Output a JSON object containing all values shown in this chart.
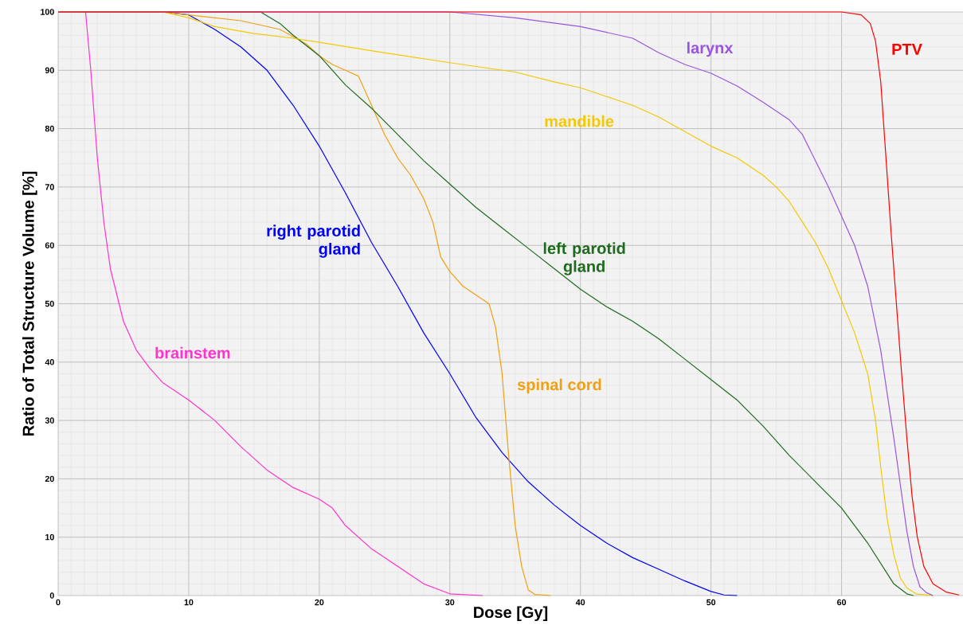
{
  "chart_data": {
    "type": "line",
    "xlabel": "Dose [Gy]",
    "ylabel": "Ratio of Total Structure Volume [%]",
    "xlim": [
      0,
      69.3
    ],
    "ylim": [
      0,
      100
    ],
    "xticks": [
      0,
      10,
      20,
      30,
      40,
      50,
      60
    ],
    "yticks": [
      0,
      10,
      20,
      30,
      40,
      50,
      60,
      70,
      80,
      90,
      100
    ],
    "grid": true,
    "series": [
      {
        "name": "brainstem",
        "color": "#ff33cc",
        "x": [
          2.1,
          2.5,
          3,
          3.5,
          4,
          5,
          6,
          7,
          8,
          10,
          12,
          14,
          16,
          18,
          20,
          21,
          22,
          24,
          26,
          28,
          30,
          32.5
        ],
        "values": [
          100,
          90,
          75,
          64,
          56,
          47,
          42,
          39,
          36.5,
          33.5,
          30,
          25.5,
          21.5,
          18.5,
          16.5,
          15,
          12,
          8,
          5,
          2,
          0.3,
          0
        ]
      },
      {
        "name": "right parotid gland",
        "color": "#0000ff",
        "x": [
          0,
          8,
          10,
          12,
          14,
          16,
          18,
          20,
          22,
          24,
          26,
          28,
          30,
          32,
          34,
          36,
          38,
          40,
          42,
          44,
          46,
          48,
          50,
          51,
          52
        ],
        "values": [
          100,
          100,
          99.5,
          97,
          94,
          90,
          84,
          77,
          69,
          60.5,
          53,
          45,
          38,
          30.5,
          24.5,
          19.5,
          15.5,
          12,
          9,
          6.5,
          4.5,
          2.5,
          0.7,
          0.1,
          0
        ]
      },
      {
        "name": "spinal cord",
        "color": "#f0a010",
        "x": [
          0,
          8,
          10,
          14,
          17,
          19,
          20,
          21,
          22,
          23,
          24,
          25,
          26,
          27,
          28,
          28.7,
          29.3,
          30,
          31,
          32,
          33,
          33.5,
          34,
          34.5,
          35,
          35.5,
          36,
          36.5,
          37.7
        ],
        "values": [
          100,
          100,
          99.5,
          98.5,
          97,
          94.5,
          92.5,
          91,
          90,
          89,
          84,
          79,
          75,
          72,
          68,
          64,
          58,
          55.5,
          53,
          51.5,
          50,
          46,
          38,
          24,
          12,
          5,
          1,
          0.2,
          0
        ]
      },
      {
        "name": "left parotid gland",
        "color": "#1e6b1e",
        "x": [
          0,
          15.5,
          17,
          18,
          20,
          22,
          24,
          26,
          28,
          30,
          32,
          34,
          36,
          38,
          40,
          42,
          44,
          46,
          48,
          50,
          52,
          54,
          56,
          58,
          60,
          62,
          63,
          64,
          65,
          65.5
        ],
        "values": [
          100,
          100,
          98,
          96,
          92.5,
          87.5,
          83.5,
          79,
          74.5,
          70.5,
          66.5,
          63,
          59.5,
          56,
          52.5,
          49.5,
          47,
          44,
          40.5,
          37,
          33.5,
          29,
          24,
          19.5,
          15,
          9,
          5.5,
          2,
          0.3,
          0
        ]
      },
      {
        "name": "mandible",
        "color": "#f5c800",
        "x": [
          0,
          8,
          10,
          12,
          15,
          18,
          20,
          25,
          30,
          35,
          38,
          40,
          42,
          44,
          46,
          48,
          50,
          52,
          54,
          55,
          56,
          57,
          58,
          59,
          60,
          61,
          62,
          62.6,
          63,
          63.5,
          64,
          64.5,
          65,
          65.7,
          67
        ],
        "values": [
          100,
          100,
          99,
          97.5,
          96.3,
          95.5,
          94.8,
          93,
          91.3,
          89.7,
          88,
          87,
          85.5,
          84,
          82,
          79.5,
          77,
          75,
          72,
          70,
          67.5,
          64,
          60.5,
          56,
          50.5,
          45,
          38,
          30,
          22,
          13,
          7,
          3,
          1.3,
          0.3,
          0
        ]
      },
      {
        "name": "larynx",
        "color": "#9955dd",
        "x": [
          0,
          30,
          35,
          40,
          44,
          46,
          48,
          50,
          52,
          54,
          56,
          57,
          58,
          59,
          60,
          61,
          62,
          63,
          64,
          64.5,
          65,
          65.5,
          66,
          66.5,
          67
        ],
        "values": [
          100,
          100,
          99,
          97.5,
          95.5,
          93,
          91,
          89.5,
          87.3,
          84.5,
          81.5,
          79,
          74.5,
          70,
          65,
          60,
          53,
          42,
          27,
          19,
          11,
          5,
          1.5,
          0.5,
          0
        ]
      },
      {
        "name": "PTV",
        "color": "#ff0000",
        "x": [
          0,
          60,
          61.5,
          62.2,
          62.6,
          63,
          63.4,
          63.8,
          64.2,
          64.6,
          65,
          65.4,
          65.8,
          66.3,
          67,
          68,
          69
        ],
        "values": [
          100,
          100,
          99.5,
          98,
          95,
          88,
          75,
          62,
          50,
          38,
          27,
          17,
          10,
          5,
          2,
          0.6,
          0.1
        ]
      }
    ]
  }
}
